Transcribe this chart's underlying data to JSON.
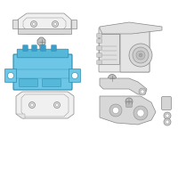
{
  "bg_color": "#ffffff",
  "part_fill": "#f0f0f0",
  "part_edge": "#888888",
  "highlight_fill": "#6ec6e6",
  "highlight_edge": "#2a8ab0",
  "highlight_dark": "#3a9ec8",
  "highlight_mid": "#55b8d8",
  "screw_fill": "#c0c0c0",
  "screw_edge": "#777777",
  "lw": 0.5,
  "lw_thick": 0.8,
  "fig_w": 2.0,
  "fig_h": 2.0,
  "dpi": 100
}
